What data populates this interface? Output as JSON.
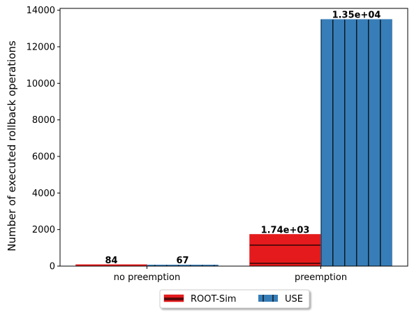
{
  "chart_data": {
    "type": "bar",
    "categories": [
      "no preemption",
      "preemption"
    ],
    "series": [
      {
        "name": "ROOT-Sim",
        "values": [
          84,
          1740
        ],
        "labels": [
          "84",
          "1.74e+03"
        ],
        "color": "#e41a1c",
        "hatch": "horizontal"
      },
      {
        "name": "USE",
        "values": [
          67,
          13500
        ],
        "labels": [
          "67",
          "1.35e+04"
        ],
        "color": "#377eb8",
        "hatch": "vertical"
      }
    ],
    "title": "",
    "xlabel": "",
    "ylabel": "Number of executed rollback operations",
    "ylim": [
      0,
      14100
    ],
    "yticks": [
      0,
      2000,
      4000,
      6000,
      8000,
      10000,
      12000,
      14000
    ],
    "ytick_labels": [
      "0",
      "2000",
      "4000",
      "6000",
      "8000",
      "10000",
      "12000",
      "14000"
    ],
    "grid": false,
    "legend": {
      "placement": "bottom-center",
      "columns": 2,
      "shadow": true
    }
  }
}
